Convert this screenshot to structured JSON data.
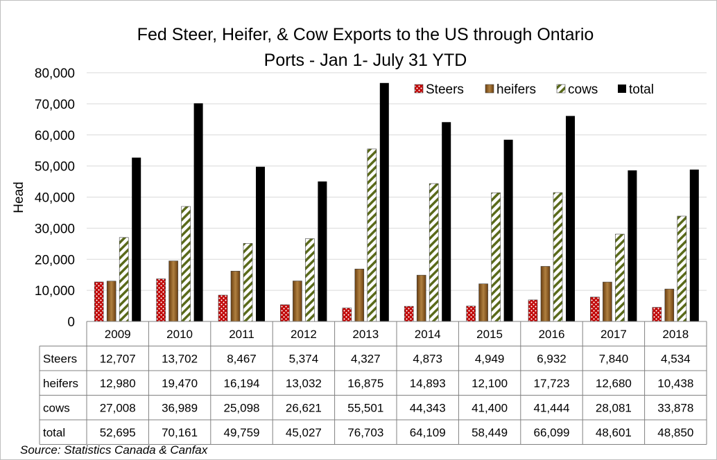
{
  "chart_data": {
    "type": "bar",
    "title": "Fed Steer, Heifer, & Cow Exports to the US through Ontario Ports - Jan 1- July 31 YTD",
    "title_lines": [
      "Fed Steer, Heifer, & Cow Exports to the US through Ontario",
      "Ports - Jan 1- July 31 YTD"
    ],
    "xlabel": "",
    "ylabel": "Head",
    "ylim": [
      0,
      80000
    ],
    "yticks": [
      0,
      10000,
      20000,
      30000,
      40000,
      50000,
      60000,
      70000,
      80000
    ],
    "ytick_labels": [
      "0",
      "10,000",
      "20,000",
      "30,000",
      "40,000",
      "50,000",
      "60,000",
      "70,000",
      "80,000"
    ],
    "grid": true,
    "legend_position": "top-right",
    "categories": [
      "2009",
      "2010",
      "2011",
      "2012",
      "2013",
      "2014",
      "2015",
      "2016",
      "2017",
      "2018"
    ],
    "series": [
      {
        "name": "Steers",
        "values": [
          12707,
          13702,
          8467,
          5374,
          4327,
          4873,
          4949,
          6932,
          7840,
          4534
        ],
        "labels": [
          "12,707",
          "13,702",
          "8,467",
          "5,374",
          "4,327",
          "4,873",
          "4,949",
          "6,932",
          "7,840",
          "4,534"
        ],
        "color": "#c00000",
        "pattern": "dots"
      },
      {
        "name": "heifers",
        "values": [
          12980,
          19470,
          16194,
          13032,
          16875,
          14893,
          12100,
          17723,
          12680,
          10438
        ],
        "labels": [
          "12,980",
          "19,470",
          "16,194",
          "13,032",
          "16,875",
          "14,893",
          "12,100",
          "17,723",
          "12,680",
          "10,438"
        ],
        "color": "#8c5a1e",
        "pattern": "gradient"
      },
      {
        "name": "cows",
        "values": [
          27008,
          36989,
          25098,
          26621,
          55501,
          44343,
          41400,
          41444,
          28081,
          33878
        ],
        "labels": [
          "27,008",
          "36,989",
          "25,098",
          "26,621",
          "55,501",
          "44,343",
          "41,400",
          "41,444",
          "28,081",
          "33,878"
        ],
        "color": "#5a6a1a",
        "pattern": "diagonal"
      },
      {
        "name": "total",
        "values": [
          52695,
          70161,
          49759,
          45027,
          76703,
          64109,
          58449,
          66099,
          48601,
          48850
        ],
        "labels": [
          "52,695",
          "70,161",
          "49,759",
          "45,027",
          "76,703",
          "64,109",
          "58,449",
          "66,099",
          "48,601",
          "48,850"
        ],
        "color": "#000000",
        "pattern": "solid"
      }
    ]
  },
  "source": "Source: Statistics Canada & Canfax"
}
